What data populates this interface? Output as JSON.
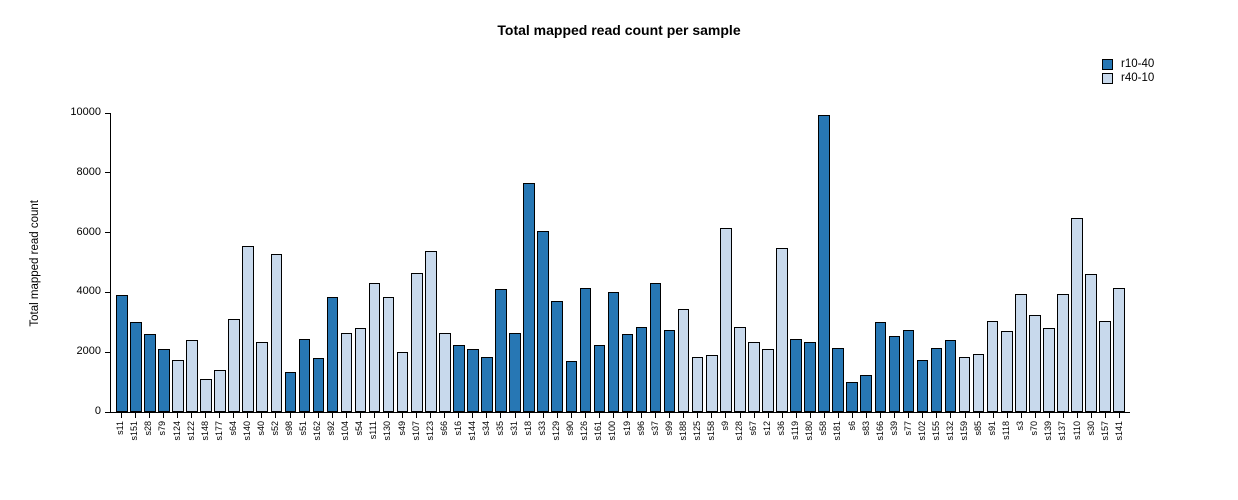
{
  "chart_data": {
    "type": "bar",
    "title": "Total mapped read count per sample",
    "xlabel": "",
    "ylabel": "Total mapped read count",
    "ylim": [
      0,
      10000
    ],
    "yticks": [
      0,
      2000,
      4000,
      6000,
      8000,
      10000
    ],
    "grid": false,
    "legend_position": "top-right",
    "series": [
      {
        "name": "r10-40",
        "color": "#2777b4"
      },
      {
        "name": "r40-10",
        "color": "#c8d9ec"
      }
    ],
    "categories": [
      "s11",
      "s151",
      "s28",
      "s79",
      "s124",
      "s122",
      "s148",
      "s177",
      "s64",
      "s140",
      "s40",
      "s52",
      "s98",
      "s51",
      "s162",
      "s92",
      "s104",
      "s54",
      "s111",
      "s130",
      "s49",
      "s107",
      "s123",
      "s66",
      "s16",
      "s144",
      "s34",
      "s35",
      "s31",
      "s18",
      "s33",
      "s129",
      "s90",
      "s126",
      "s161",
      "s100",
      "s19",
      "s96",
      "s37",
      "s99",
      "s188",
      "s125",
      "s158",
      "s9",
      "s128",
      "s67",
      "s12",
      "s36",
      "s119",
      "s180",
      "s58",
      "s181",
      "s6",
      "s83",
      "s166",
      "s39",
      "s77",
      "s102",
      "s155",
      "s132",
      "s159",
      "s85",
      "s91",
      "s118",
      "s3",
      "s70",
      "s139",
      "s137",
      "s110",
      "s30",
      "s157",
      "s141"
    ],
    "values": [
      3900,
      3000,
      2600,
      2100,
      1750,
      2400,
      1100,
      1400,
      3100,
      5550,
      2350,
      5300,
      1350,
      2450,
      1800,
      3850,
      2650,
      2800,
      4300,
      3850,
      2000,
      4650,
      5400,
      2650,
      2250,
      2100,
      1850,
      4100,
      2650,
      7650,
      6050,
      3700,
      1700,
      4150,
      2250,
      4000,
      2600,
      2850,
      4300,
      2750,
      3450,
      1850,
      1900,
      6150,
      2850,
      2350,
      2100,
      5500,
      2450,
      2350,
      9950,
      2150,
      1000,
      1250,
      3000,
      2550,
      2750,
      1750,
      2150,
      2400,
      1850,
      1950,
      3050,
      2700,
      3950,
      3250,
      2800,
      3950,
      6500,
      4600,
      3050,
      4150
    ],
    "series_index": [
      0,
      0,
      0,
      0,
      1,
      1,
      1,
      1,
      1,
      1,
      1,
      1,
      0,
      0,
      0,
      0,
      1,
      1,
      1,
      1,
      1,
      1,
      1,
      1,
      0,
      0,
      0,
      0,
      0,
      0,
      0,
      0,
      0,
      0,
      0,
      0,
      0,
      0,
      0,
      0,
      1,
      1,
      1,
      1,
      1,
      1,
      1,
      1,
      0,
      0,
      0,
      0,
      0,
      0,
      0,
      0,
      0,
      0,
      0,
      0,
      1,
      1,
      1,
      1,
      1,
      1,
      1,
      1,
      1,
      1,
      1,
      1
    ]
  }
}
